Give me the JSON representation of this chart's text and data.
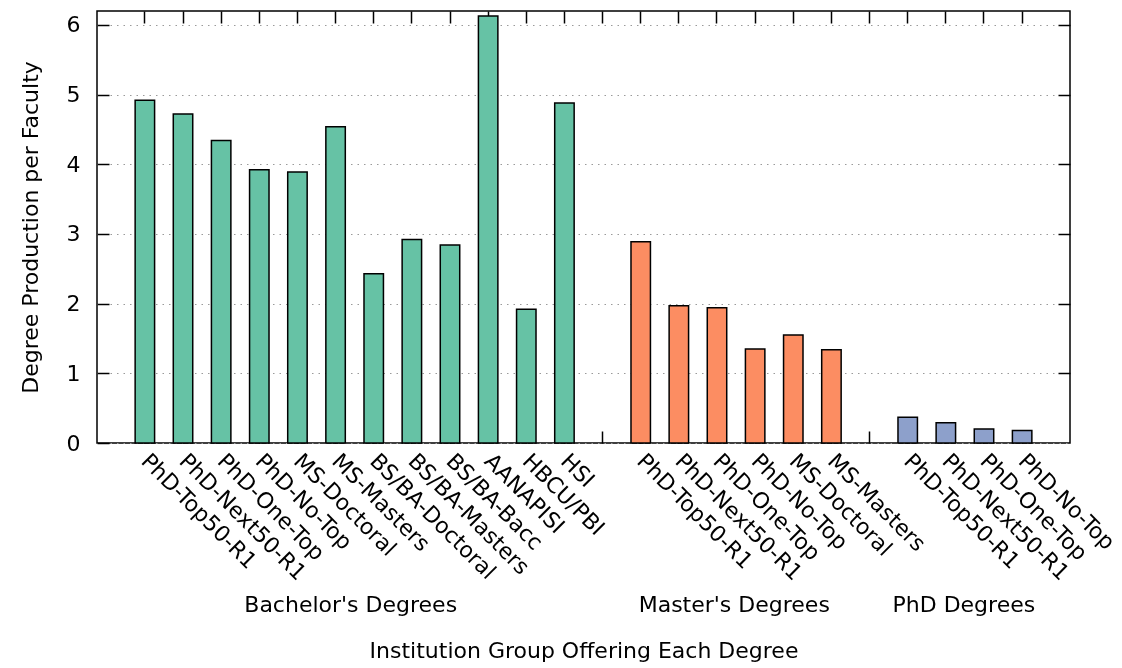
{
  "chart_data": {
    "type": "bar",
    "xlabel": "Institution Group Offering Each Degree",
    "ylabel": "Degree Production per Faculty",
    "categories": [
      "PhD-Top50-R1",
      "PhD-Next50-R1",
      "PhD-One-Top",
      "PhD-No-Top",
      "MS-Doctoral",
      "MS-Masters",
      "BS/BA-Doctoral",
      "BS/BA-Masters",
      "BS/BA-Bacc",
      "AANAPISI",
      "HBCU/PBI",
      "HSI",
      null,
      "PhD-Top50-R1",
      "PhD-Next50-R1",
      "PhD-One-Top",
      "PhD-No-Top",
      "MS-Doctoral",
      "MS-Masters",
      null,
      "PhD-Top50-R1",
      "PhD-Next50-R1",
      "PhD-One-Top",
      "PhD-No-Top"
    ],
    "series": [
      {
        "color": "#66c2a5",
        "values": [
          4.92,
          4.72,
          4.34,
          3.92,
          3.89,
          4.54,
          2.43,
          2.92,
          2.84,
          6.13,
          1.92,
          4.88,
          null,
          null,
          null,
          null,
          null,
          null,
          null,
          null,
          null,
          null,
          null,
          null
        ]
      },
      {
        "color": "#fc8d62",
        "values": [
          null,
          null,
          null,
          null,
          null,
          null,
          null,
          null,
          null,
          null,
          null,
          null,
          null,
          2.89,
          1.97,
          1.94,
          1.35,
          1.55,
          1.34,
          null,
          null,
          null,
          null,
          null
        ]
      },
      {
        "color": "#8da0cb",
        "values": [
          null,
          null,
          null,
          null,
          null,
          null,
          null,
          null,
          null,
          null,
          null,
          null,
          null,
          null,
          null,
          null,
          null,
          null,
          null,
          null,
          0.37,
          0.29,
          0.2,
          0.18
        ]
      }
    ],
    "annotations": [
      "Bachelor's Degrees",
      "Master's Degrees",
      "PhD Degrees"
    ],
    "ylim": [
      0,
      6.2
    ],
    "yticks": [
      0,
      1,
      2,
      3,
      4,
      5,
      6
    ],
    "grid": "y"
  }
}
